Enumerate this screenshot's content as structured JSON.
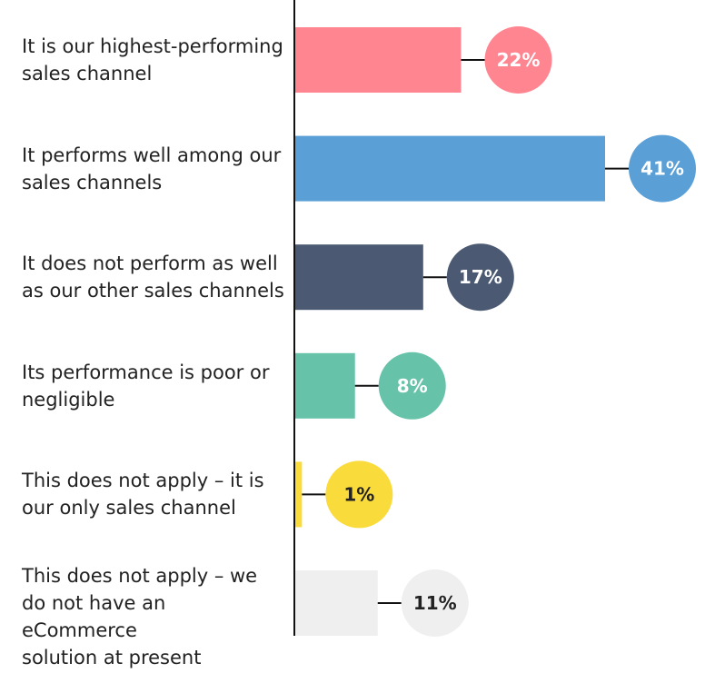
{
  "chart_data": {
    "type": "bar",
    "orientation": "horizontal",
    "title": "",
    "xlabel": "",
    "ylabel": "",
    "xlim": [
      0,
      41
    ],
    "grid": false,
    "categories": [
      "It is our highest-performing sales channel",
      "It performs well among our sales channels",
      "It does not perform as well as our other sales channels",
      "Its performance is poor or negligible",
      "This does not apply – it is our only sales channel",
      "This does not apply – we do not have an eCommerce solution at present"
    ],
    "category_lines": [
      [
        "It is our highest-performing",
        "sales channel"
      ],
      [
        "It performs well among our",
        "sales channels"
      ],
      [
        "It does not perform as well",
        "as our other sales channels"
      ],
      [
        "Its performance is poor or",
        "negligible"
      ],
      [
        "This does not apply – it is",
        "our only sales channel"
      ],
      [
        "This does not apply – we",
        "do not have an eCommerce",
        "solution at present"
      ]
    ],
    "values": [
      22,
      41,
      17,
      8,
      1,
      11
    ],
    "value_labels": [
      "22%",
      "41%",
      "17%",
      "8%",
      "1%",
      "11%"
    ],
    "colors": [
      "#ff8591",
      "#5a9fd6",
      "#4b5a72",
      "#66c2a8",
      "#fadb3c",
      "#efefef"
    ],
    "label_text_colors": [
      "#ffffff",
      "#ffffff",
      "#ffffff",
      "#ffffff",
      "#222222",
      "#222222"
    ]
  }
}
